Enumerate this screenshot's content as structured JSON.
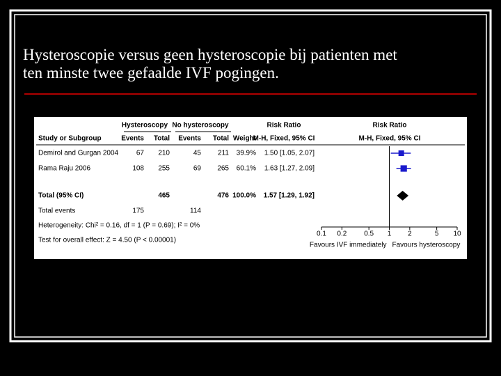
{
  "slide": {
    "title_line1": "Hysteroscopie versus geen hysteroscopie bij patienten met",
    "title_line2": "ten minste twee gefaalde IVF pogingen."
  },
  "forest": {
    "headers": {
      "study": "Study or Subgroup",
      "group1": "Hysteroscopy",
      "group2": "No hysteroscopy",
      "events": "Events",
      "total": "Total",
      "weight": "Weight",
      "risk_ratio": "Risk Ratio",
      "method": "M-H, Fixed, 95% CI"
    },
    "studies": [
      {
        "name": "Demirol and Gurgan 2004",
        "events1": 67,
        "total1": 210,
        "events2": 45,
        "total2": 211,
        "weight": 39.9,
        "weight_label": "39.9%",
        "ci_label": "1.50 [1.05, 2.07]",
        "rr": 1.5,
        "lo": 1.05,
        "hi": 2.07
      },
      {
        "name": "Rama Raju 2006",
        "events1": 108,
        "total1": 255,
        "events2": 69,
        "total2": 265,
        "weight": 60.1,
        "weight_label": "60.1%",
        "ci_label": "1.63 [1.27, 2.09]",
        "rr": 1.63,
        "lo": 1.27,
        "hi": 2.09
      }
    ],
    "total": {
      "name": "Total (95% CI)",
      "total1": 465,
      "total2": 476,
      "weight": 100,
      "weight_label": "100.0%",
      "ci_label": "1.57 [1.29, 1.92]",
      "rr": 1.57,
      "lo": 1.29,
      "hi": 1.92
    },
    "total_events": {
      "name": "Total events",
      "events1": 175,
      "events2": 114
    },
    "heterogeneity": "Heterogeneity: Chi² = 0.16, df = 1 (P = 0.69); I² = 0%",
    "overall_effect": "Test for overall effect: Z = 4.50 (P < 0.00001)",
    "xlim": [
      0.1,
      10
    ],
    "xticks": [
      0.1,
      0.2,
      0.5,
      1,
      2,
      5,
      10
    ],
    "log_scale": true,
    "favours_left": "Favours IVF immediately",
    "favours_right": "Favours hysteroscopy",
    "study_color": "#1a1acc",
    "total_color": "#000000"
  }
}
